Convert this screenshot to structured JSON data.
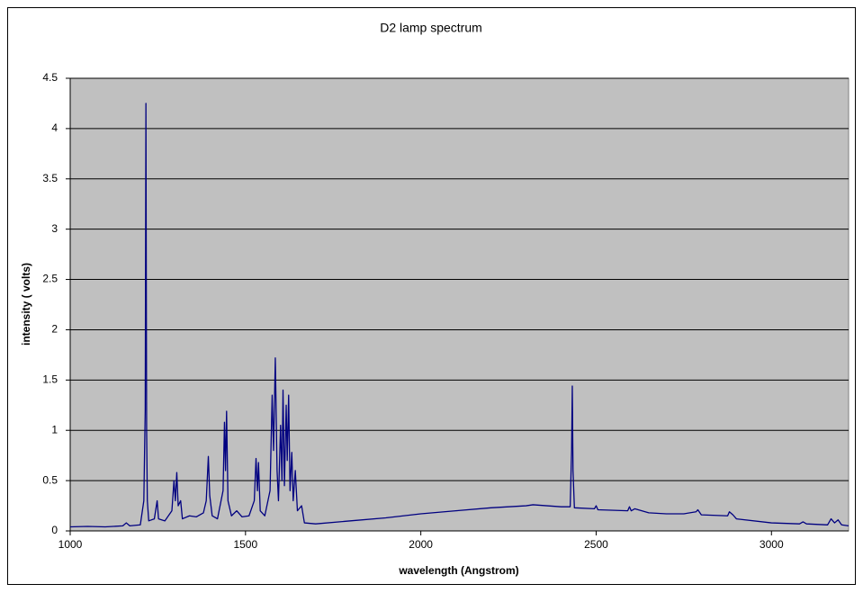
{
  "chart_data": {
    "type": "line",
    "title": "D2 lamp spectrum",
    "x_label": "wavelength (Angstrom)",
    "y_label": "intensity ( volts)",
    "x": [
      1000,
      1050,
      1100,
      1150,
      1160,
      1170,
      1200,
      1210,
      1214,
      1216,
      1218,
      1220,
      1224,
      1240,
      1248,
      1252,
      1270,
      1290,
      1296,
      1300,
      1304,
      1308,
      1315,
      1320,
      1340,
      1360,
      1380,
      1388,
      1394,
      1398,
      1405,
      1420,
      1436,
      1440,
      1443,
      1446,
      1450,
      1460,
      1475,
      1490,
      1510,
      1525,
      1530,
      1534,
      1537,
      1542,
      1555,
      1570,
      1576,
      1580,
      1585,
      1590,
      1594,
      1600,
      1604,
      1607,
      1611,
      1616,
      1619,
      1623,
      1627,
      1632,
      1636,
      1642,
      1648,
      1660,
      1668,
      1700,
      1800,
      1900,
      2000,
      2100,
      2200,
      2300,
      2320,
      2400,
      2426,
      2430,
      2432,
      2434,
      2438,
      2495,
      2500,
      2505,
      2590,
      2595,
      2600,
      2610,
      2650,
      2700,
      2750,
      2785,
      2790,
      2800,
      2875,
      2880,
      2890,
      2900,
      3000,
      3080,
      3090,
      3100,
      3160,
      3170,
      3180,
      3190,
      3200,
      3220
    ],
    "values": [
      0.04,
      0.045,
      0.04,
      0.05,
      0.08,
      0.05,
      0.06,
      0.3,
      1.2,
      4.25,
      1.0,
      0.3,
      0.1,
      0.12,
      0.3,
      0.12,
      0.1,
      0.2,
      0.5,
      0.3,
      0.58,
      0.25,
      0.3,
      0.12,
      0.15,
      0.14,
      0.18,
      0.3,
      0.74,
      0.35,
      0.15,
      0.12,
      0.4,
      1.08,
      0.6,
      1.19,
      0.3,
      0.15,
      0.2,
      0.14,
      0.15,
      0.3,
      0.72,
      0.4,
      0.68,
      0.2,
      0.15,
      0.4,
      1.35,
      0.8,
      1.72,
      0.6,
      0.3,
      1.05,
      0.5,
      1.4,
      0.45,
      1.25,
      0.7,
      1.35,
      0.4,
      0.78,
      0.3,
      0.6,
      0.2,
      0.25,
      0.08,
      0.07,
      0.1,
      0.13,
      0.17,
      0.2,
      0.23,
      0.25,
      0.26,
      0.24,
      0.24,
      0.8,
      1.44,
      0.6,
      0.23,
      0.22,
      0.25,
      0.21,
      0.2,
      0.24,
      0.2,
      0.22,
      0.18,
      0.17,
      0.17,
      0.19,
      0.21,
      0.16,
      0.15,
      0.19,
      0.16,
      0.12,
      0.08,
      0.07,
      0.09,
      0.07,
      0.06,
      0.12,
      0.08,
      0.11,
      0.06,
      0.05
    ],
    "color": "#000080",
    "xlim": [
      1000,
      3220
    ],
    "xticks": [
      1000,
      1500,
      2000,
      2500,
      3000
    ],
    "ylim": [
      0,
      4.5
    ],
    "yticks": [
      0,
      0.5,
      1,
      1.5,
      2,
      2.5,
      3,
      3.5,
      4,
      4.5
    ],
    "grid": true,
    "plot_background": "#c0c0c0"
  }
}
